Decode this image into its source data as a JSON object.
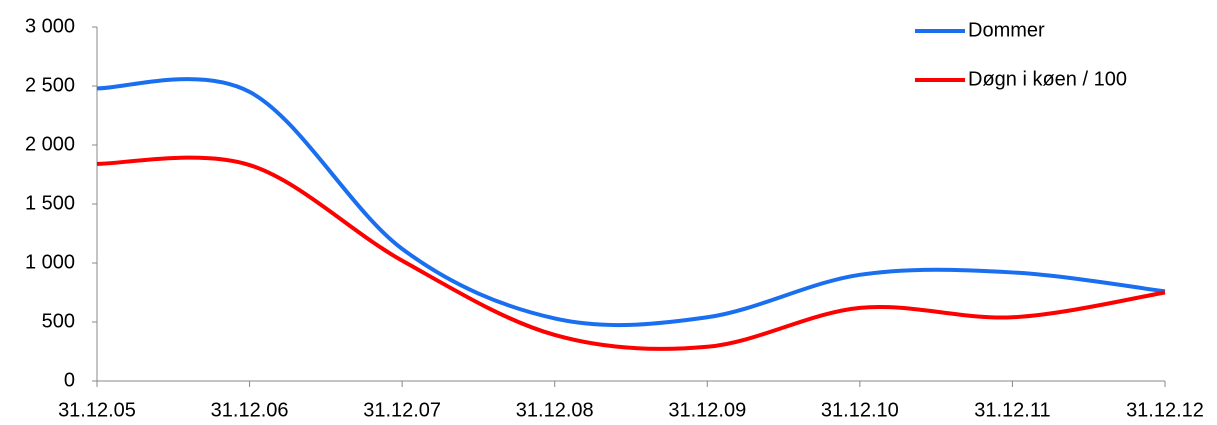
{
  "chart_data": {
    "type": "line",
    "categories": [
      "31.12.05",
      "31.12.06",
      "31.12.07",
      "31.12.08",
      "31.12.09",
      "31.12.10",
      "31.12.11",
      "31.12.12"
    ],
    "series": [
      {
        "name": "Dommer",
        "color": "#1a6ff0",
        "values": [
          2480,
          2450,
          1120,
          530,
          540,
          900,
          920,
          760
        ]
      },
      {
        "name": "Døgn i køen / 100",
        "color": "#ff0000",
        "values": [
          1840,
          1830,
          1020,
          390,
          290,
          620,
          540,
          750
        ]
      }
    ],
    "ylim": [
      0,
      3000
    ],
    "yticks": [
      0,
      500,
      {
        "value": 1000,
        "label": "1 000"
      },
      {
        "value": 1500,
        "label": "1 500"
      },
      {
        "value": 2000,
        "label": "2 000"
      },
      {
        "value": 2500,
        "label": "2 500"
      },
      {
        "value": 3000,
        "label": "3 000"
      }
    ],
    "legend": "top-right"
  }
}
